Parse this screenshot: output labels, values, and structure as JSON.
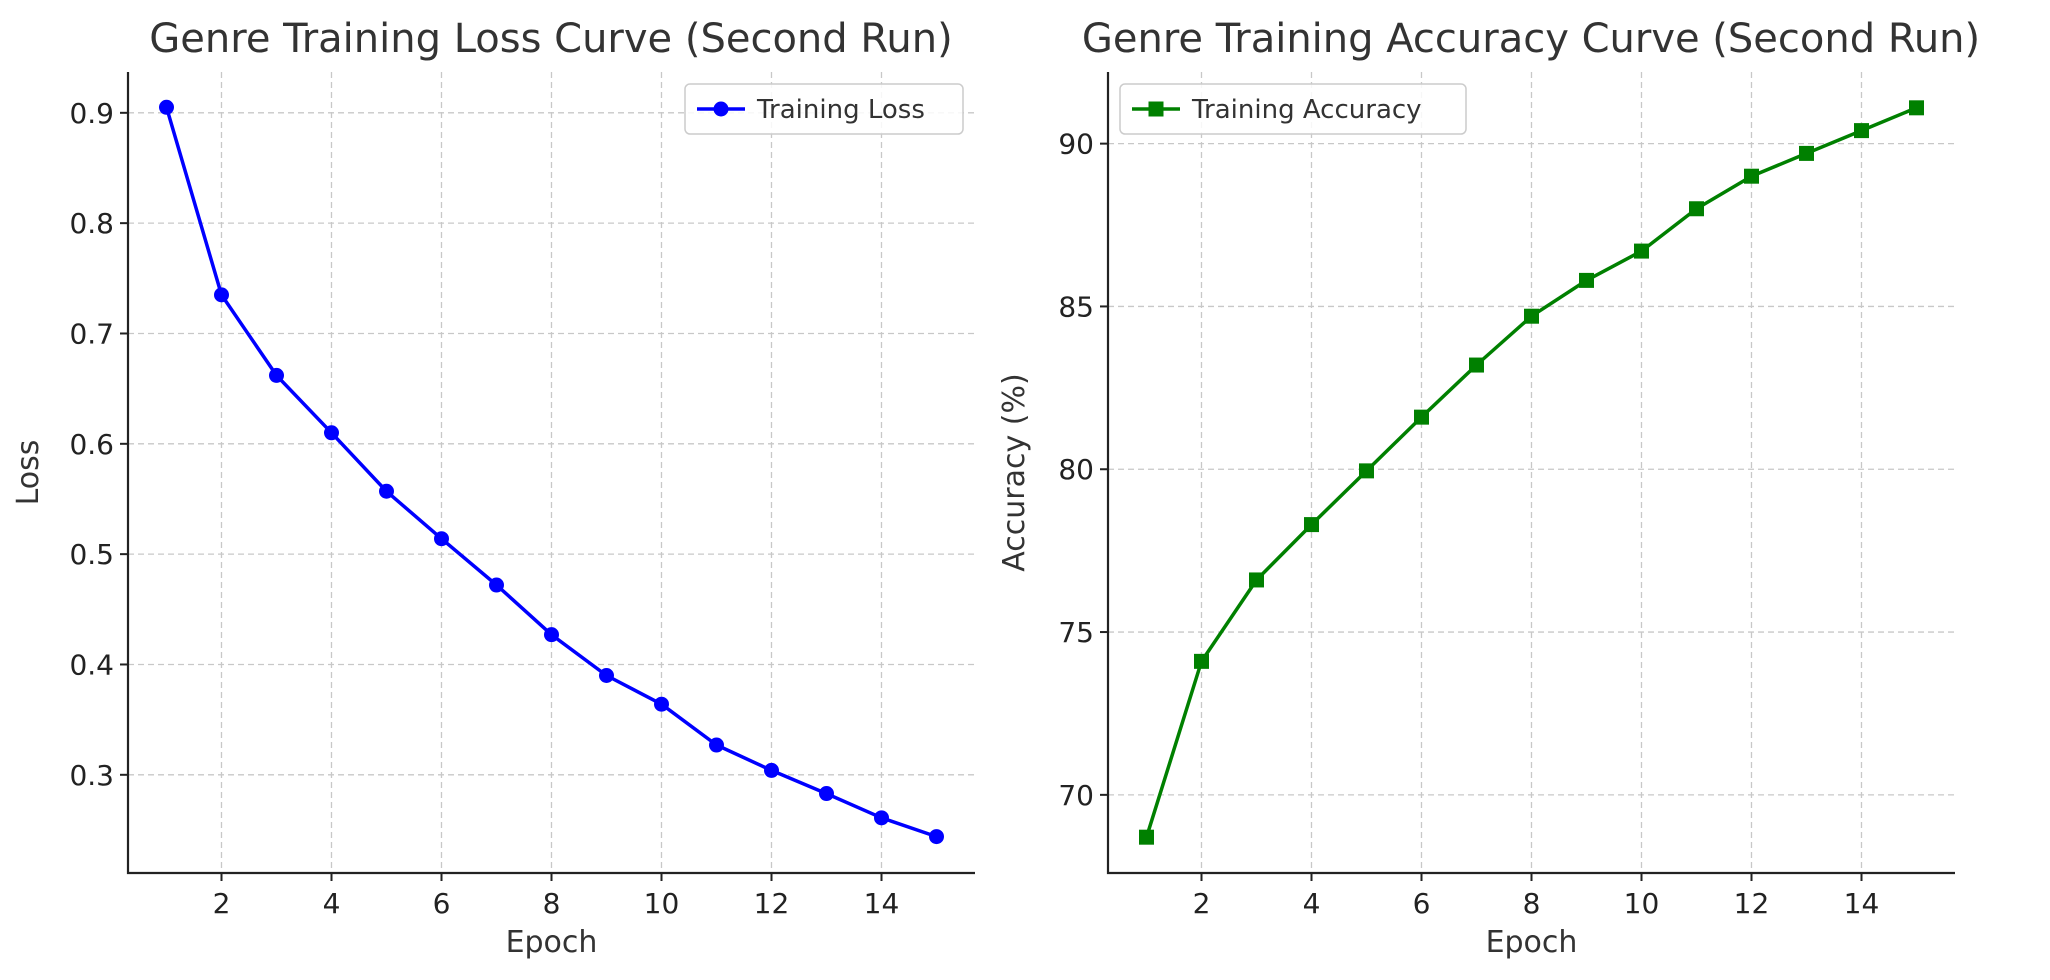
{
  "chart_data": [
    {
      "type": "line",
      "title": "Genre Training Loss Curve (Second Run)",
      "xlabel": "Epoch",
      "ylabel": "Loss",
      "x": [
        1,
        2,
        3,
        4,
        5,
        6,
        7,
        8,
        9,
        10,
        11,
        12,
        13,
        14,
        15
      ],
      "xticks": [
        2,
        4,
        6,
        8,
        10,
        12,
        14
      ],
      "xlim": [
        0.3,
        15.7
      ],
      "yticks": [
        0.3,
        0.4,
        0.5,
        0.6,
        0.7,
        0.8,
        0.9
      ],
      "ylim": [
        0.211,
        0.937
      ],
      "ytick_decimals": 1,
      "grid": true,
      "legend_position": "upper right",
      "series": [
        {
          "name": "Training Loss",
          "color": "#0000ff",
          "marker": "circle",
          "values": [
            0.905,
            0.735,
            0.662,
            0.61,
            0.557,
            0.514,
            0.472,
            0.427,
            0.39,
            0.364,
            0.327,
            0.304,
            0.283,
            0.261,
            0.244
          ]
        }
      ]
    },
    {
      "type": "line",
      "title": "Genre Training Accuracy Curve (Second Run)",
      "xlabel": "Epoch",
      "ylabel": "Accuracy (%)",
      "x": [
        1,
        2,
        3,
        4,
        5,
        6,
        7,
        8,
        9,
        10,
        11,
        12,
        13,
        14,
        15
      ],
      "xticks": [
        2,
        4,
        6,
        8,
        10,
        12,
        14
      ],
      "xlim": [
        0.3,
        15.7
      ],
      "yticks": [
        70,
        75,
        80,
        85,
        90
      ],
      "ylim": [
        67.6,
        92.2
      ],
      "ytick_decimals": 0,
      "grid": true,
      "legend_position": "upper left",
      "series": [
        {
          "name": "Training Accuracy",
          "color": "#008000",
          "marker": "square",
          "values": [
            68.7,
            74.1,
            76.6,
            78.3,
            79.95,
            81.6,
            83.2,
            84.7,
            85.8,
            86.7,
            88.0,
            89.0,
            89.7,
            90.4,
            91.1
          ]
        }
      ]
    }
  ]
}
